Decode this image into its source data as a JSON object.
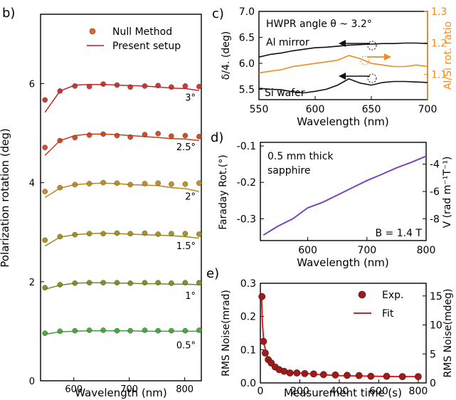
{
  "panel_labels": {
    "b": "b)",
    "c": "c)",
    "d": "d)",
    "e": "e)"
  },
  "chart_data": [
    {
      "id": "b",
      "type": "scatter",
      "xlabel": "Wavelength (nm)",
      "ylabel": "Polarization rotation (deg)",
      "xlim": [
        540,
        830
      ],
      "ylim": [
        0,
        7.4
      ],
      "xticks": [
        600,
        700,
        800
      ],
      "yticks": [
        0,
        2,
        4,
        6
      ],
      "legend": {
        "placement": "top-right",
        "entries": [
          "Null Method",
          "Present setup"
        ]
      },
      "x": [
        548,
        575,
        602,
        628,
        653,
        678,
        702,
        728,
        752,
        776,
        801,
        826
      ],
      "series": [
        {
          "label": "3°",
          "angle_deg": 3.0,
          "color": "#c0292b",
          "dots": [
            5.67,
            5.85,
            5.95,
            5.94,
            5.99,
            5.97,
            5.93,
            5.95,
            5.96,
            5.93,
            5.95,
            5.94
          ],
          "line": [
            5.42,
            5.85,
            5.97,
            5.98,
            5.98,
            5.97,
            5.96,
            5.95,
            5.93,
            5.91,
            5.9,
            5.86
          ]
        },
        {
          "label": "2.5°",
          "angle_deg": 2.5,
          "color": "#c04020",
          "dots": [
            4.71,
            4.85,
            4.91,
            4.96,
            4.98,
            4.95,
            4.92,
            4.97,
            4.99,
            4.94,
            4.95,
            4.93
          ],
          "line": [
            4.55,
            4.85,
            4.95,
            4.98,
            4.98,
            4.97,
            4.95,
            4.93,
            4.91,
            4.89,
            4.88,
            4.85
          ]
        },
        {
          "label": "2°",
          "angle_deg": 2.0,
          "color": "#b8861b",
          "dots": [
            3.82,
            3.9,
            3.96,
            3.98,
            4.0,
            3.99,
            3.96,
            3.98,
            3.99,
            3.97,
            3.97,
            3.99
          ],
          "line": [
            3.7,
            3.89,
            3.96,
            3.98,
            3.99,
            3.98,
            3.96,
            3.95,
            3.94,
            3.9,
            3.88,
            3.82
          ]
        },
        {
          "label": "1.5°",
          "angle_deg": 1.5,
          "color": "#9c8a1a",
          "dots": [
            2.84,
            2.91,
            2.95,
            2.97,
            2.97,
            2.98,
            2.97,
            2.98,
            2.96,
            2.97,
            2.97,
            2.96
          ],
          "line": [
            2.72,
            2.9,
            2.95,
            2.97,
            2.98,
            2.97,
            2.96,
            2.95,
            2.94,
            2.93,
            2.91,
            2.88
          ]
        },
        {
          "label": "1°",
          "angle_deg": 1.0,
          "color": "#6f8a22",
          "dots": [
            1.88,
            1.94,
            1.97,
            1.98,
            1.98,
            1.98,
            1.97,
            1.98,
            1.98,
            1.97,
            1.98,
            1.98
          ],
          "line": [
            1.85,
            1.93,
            1.97,
            1.98,
            1.98,
            1.97,
            1.97,
            1.96,
            1.96,
            1.95,
            1.95,
            1.94
          ]
        },
        {
          "label": "0.5°",
          "angle_deg": 0.5,
          "color": "#3aa23a",
          "dots": [
            0.96,
            1.0,
            1.01,
            1.02,
            1.02,
            1.01,
            1.01,
            1.02,
            1.01,
            1.01,
            1.01,
            1.02
          ],
          "line": [
            0.94,
            0.99,
            1.0,
            1.01,
            1.01,
            1.01,
            1.01,
            1.0,
            1.0,
            1.0,
            1.0,
            1.0
          ]
        }
      ]
    },
    {
      "id": "c",
      "type": "line",
      "xlabel": "Wavelength (nm)",
      "ylabel": "δ/4. (deg)",
      "y2label": "Al/Si rot. ratio",
      "xlim": [
        550,
        700
      ],
      "ylim": [
        5.3,
        7.0
      ],
      "y2lim": [
        1.02,
        1.3
      ],
      "xticks": [
        550,
        600,
        650,
        700
      ],
      "yticks": [
        5.5,
        6.0,
        6.5,
        7.0
      ],
      "y2ticks": [
        1.1,
        1.2,
        1.3
      ],
      "annotation": "HWPR angle θ ~ 3.2°",
      "series": [
        {
          "name": "Al mirror",
          "axis": "left",
          "color": "#111111",
          "x": [
            550,
            560,
            570,
            580,
            590,
            600,
            610,
            620,
            630,
            640,
            650,
            660,
            670,
            680,
            690,
            700
          ],
          "y": [
            6.12,
            6.17,
            6.2,
            6.24,
            6.27,
            6.3,
            6.31,
            6.33,
            6.35,
            6.36,
            6.37,
            6.38,
            6.38,
            6.39,
            6.39,
            6.38
          ]
        },
        {
          "name": "Si wafer",
          "axis": "left",
          "color": "#111111",
          "x": [
            550,
            560,
            570,
            580,
            590,
            600,
            610,
            620,
            630,
            640,
            650,
            660,
            670,
            680,
            690,
            700
          ],
          "y": [
            5.52,
            5.5,
            5.49,
            5.45,
            5.43,
            5.46,
            5.5,
            5.58,
            5.7,
            5.62,
            5.58,
            5.63,
            5.65,
            5.65,
            5.64,
            5.63
          ]
        },
        {
          "name": "Al/Si rot. ratio",
          "axis": "right",
          "color": "#f08c1e",
          "x": [
            550,
            560,
            570,
            580,
            590,
            600,
            610,
            620,
            630,
            640,
            650,
            660,
            670,
            680,
            690,
            700
          ],
          "y": [
            1.105,
            1.11,
            1.115,
            1.125,
            1.13,
            1.135,
            1.14,
            1.145,
            1.16,
            1.15,
            1.135,
            1.13,
            1.125,
            1.125,
            1.13,
            1.125
          ]
        }
      ]
    },
    {
      "id": "d",
      "type": "line",
      "xlabel": "Wavelength (nm)",
      "ylabel": "Faraday Rot.(°)",
      "y2label": "V (rad m⁻¹T⁻¹)",
      "xlim": [
        520,
        800
      ],
      "ylim": [
        -0.36,
        -0.09
      ],
      "xticks": [
        600,
        700,
        800
      ],
      "yticks": [
        -0.1,
        -0.2,
        -0.3
      ],
      "y2ticks": [
        -4,
        -6,
        -8
      ],
      "y2tick_values": [
        -0.15,
        -0.225,
        -0.3
      ],
      "annotations": [
        "0.5 mm thick",
        "sapphire",
        "B = 1.4 T"
      ],
      "series": [
        {
          "name": "Faraday rotation",
          "color": "#7b45b5",
          "x": [
            525,
            550,
            575,
            600,
            625,
            650,
            675,
            700,
            725,
            750,
            775,
            800
          ],
          "y": [
            -0.345,
            -0.32,
            -0.3,
            -0.27,
            -0.255,
            -0.235,
            -0.215,
            -0.195,
            -0.178,
            -0.16,
            -0.145,
            -0.128
          ]
        }
      ]
    },
    {
      "id": "e",
      "type": "scatter",
      "xlabel": "Measurement time (s)",
      "ylabel": "RMS Noise(mrad)",
      "y2label": "RMS Noise(mdeg)",
      "xlim": [
        0,
        840
      ],
      "ylim": [
        0,
        0.3
      ],
      "xticks": [
        0,
        200,
        400,
        600,
        800
      ],
      "xtick_labels": [
        "0",
        "200",
        "400",
        "600",
        "800"
      ],
      "yticks": [
        0.0,
        0.1,
        0.2,
        0.3
      ],
      "y2ticks": [
        0,
        5,
        10,
        15
      ],
      "legend": {
        "placement": "top-right",
        "entries": [
          "Exp.",
          "Fit"
        ]
      },
      "points": {
        "x": [
          8,
          16,
          25,
          40,
          55,
          75,
          95,
          120,
          150,
          185,
          225,
          270,
          320,
          380,
          440,
          500,
          560,
          640,
          720,
          800
        ],
        "y": [
          0.26,
          0.125,
          0.09,
          0.07,
          0.06,
          0.048,
          0.04,
          0.035,
          0.03,
          0.03,
          0.028,
          0.027,
          0.025,
          0.024,
          0.023,
          0.022,
          0.02,
          0.02,
          0.019,
          0.019
        ]
      },
      "fit": {
        "x": [
          6,
          10,
          15,
          20,
          30,
          45,
          60,
          80,
          100,
          130,
          170,
          220,
          300,
          400,
          500,
          600,
          700,
          800
        ],
        "y": [
          0.26,
          0.185,
          0.14,
          0.115,
          0.088,
          0.068,
          0.057,
          0.048,
          0.042,
          0.037,
          0.032,
          0.029,
          0.025,
          0.022,
          0.021,
          0.02,
          0.019,
          0.019
        ]
      }
    }
  ]
}
